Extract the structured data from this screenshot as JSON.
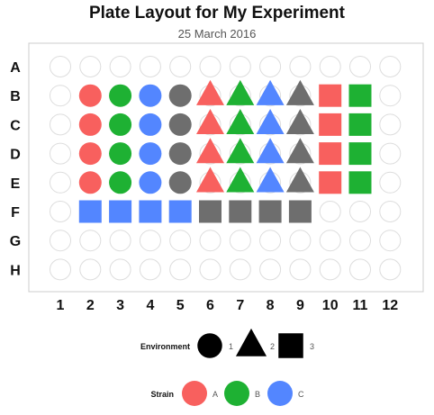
{
  "chart_data": {
    "type": "plate-layout",
    "title": "Plate Layout for My Experiment",
    "subtitle": "25 March 2016",
    "rows": [
      "A",
      "B",
      "C",
      "D",
      "E",
      "F",
      "G",
      "H"
    ],
    "columns": [
      "1",
      "2",
      "3",
      "4",
      "5",
      "6",
      "7",
      "8",
      "9",
      "10",
      "11",
      "12"
    ],
    "colors": {
      "A": "#F8605E",
      "B": "#1EB133",
      "C": "#5386FF",
      "none": "#6E6E6E",
      "empty_stroke": "#DDDDDD",
      "panel_border": "#CCCCCC"
    },
    "wells": [
      {
        "row": "B",
        "col": 2,
        "env": 1,
        "strain": "A"
      },
      {
        "row": "C",
        "col": 2,
        "env": 1,
        "strain": "A"
      },
      {
        "row": "D",
        "col": 2,
        "env": 1,
        "strain": "A"
      },
      {
        "row": "E",
        "col": 2,
        "env": 1,
        "strain": "A"
      },
      {
        "row": "B",
        "col": 3,
        "env": 1,
        "strain": "B"
      },
      {
        "row": "C",
        "col": 3,
        "env": 1,
        "strain": "B"
      },
      {
        "row": "D",
        "col": 3,
        "env": 1,
        "strain": "B"
      },
      {
        "row": "E",
        "col": 3,
        "env": 1,
        "strain": "B"
      },
      {
        "row": "B",
        "col": 4,
        "env": 1,
        "strain": "C"
      },
      {
        "row": "C",
        "col": 4,
        "env": 1,
        "strain": "C"
      },
      {
        "row": "D",
        "col": 4,
        "env": 1,
        "strain": "C"
      },
      {
        "row": "E",
        "col": 4,
        "env": 1,
        "strain": "C"
      },
      {
        "row": "B",
        "col": 5,
        "env": 1,
        "strain": null
      },
      {
        "row": "C",
        "col": 5,
        "env": 1,
        "strain": null
      },
      {
        "row": "D",
        "col": 5,
        "env": 1,
        "strain": null
      },
      {
        "row": "E",
        "col": 5,
        "env": 1,
        "strain": null
      },
      {
        "row": "B",
        "col": 6,
        "env": 2,
        "strain": "A"
      },
      {
        "row": "C",
        "col": 6,
        "env": 2,
        "strain": "A"
      },
      {
        "row": "D",
        "col": 6,
        "env": 2,
        "strain": "A"
      },
      {
        "row": "E",
        "col": 6,
        "env": 2,
        "strain": "A"
      },
      {
        "row": "B",
        "col": 7,
        "env": 2,
        "strain": "B"
      },
      {
        "row": "C",
        "col": 7,
        "env": 2,
        "strain": "B"
      },
      {
        "row": "D",
        "col": 7,
        "env": 2,
        "strain": "B"
      },
      {
        "row": "E",
        "col": 7,
        "env": 2,
        "strain": "B"
      },
      {
        "row": "B",
        "col": 8,
        "env": 2,
        "strain": "C"
      },
      {
        "row": "C",
        "col": 8,
        "env": 2,
        "strain": "C"
      },
      {
        "row": "D",
        "col": 8,
        "env": 2,
        "strain": "C"
      },
      {
        "row": "E",
        "col": 8,
        "env": 2,
        "strain": "C"
      },
      {
        "row": "B",
        "col": 9,
        "env": 2,
        "strain": null
      },
      {
        "row": "C",
        "col": 9,
        "env": 2,
        "strain": null
      },
      {
        "row": "D",
        "col": 9,
        "env": 2,
        "strain": null
      },
      {
        "row": "E",
        "col": 9,
        "env": 2,
        "strain": null
      },
      {
        "row": "B",
        "col": 10,
        "env": 3,
        "strain": "A"
      },
      {
        "row": "C",
        "col": 10,
        "env": 3,
        "strain": "A"
      },
      {
        "row": "D",
        "col": 10,
        "env": 3,
        "strain": "A"
      },
      {
        "row": "E",
        "col": 10,
        "env": 3,
        "strain": "A"
      },
      {
        "row": "B",
        "col": 11,
        "env": 3,
        "strain": "B"
      },
      {
        "row": "C",
        "col": 11,
        "env": 3,
        "strain": "B"
      },
      {
        "row": "D",
        "col": 11,
        "env": 3,
        "strain": "B"
      },
      {
        "row": "E",
        "col": 11,
        "env": 3,
        "strain": "B"
      },
      {
        "row": "F",
        "col": 2,
        "env": 3,
        "strain": "C"
      },
      {
        "row": "F",
        "col": 3,
        "env": 3,
        "strain": "C"
      },
      {
        "row": "F",
        "col": 4,
        "env": 3,
        "strain": "C"
      },
      {
        "row": "F",
        "col": 5,
        "env": 3,
        "strain": "C"
      },
      {
        "row": "F",
        "col": 6,
        "env": 3,
        "strain": null
      },
      {
        "row": "F",
        "col": 7,
        "env": 3,
        "strain": null
      },
      {
        "row": "F",
        "col": 8,
        "env": 3,
        "strain": null
      },
      {
        "row": "F",
        "col": 9,
        "env": 3,
        "strain": null
      }
    ],
    "legend": {
      "environment": {
        "title": "Environment",
        "items": [
          {
            "label": "1",
            "shape": "circle"
          },
          {
            "label": "2",
            "shape": "triangle"
          },
          {
            "label": "3",
            "shape": "square"
          }
        ]
      },
      "strain": {
        "title": "Strain",
        "items": [
          {
            "label": "A",
            "color": "#F8605E"
          },
          {
            "label": "B",
            "color": "#1EB133"
          },
          {
            "label": "C",
            "color": "#5386FF"
          }
        ]
      }
    }
  }
}
